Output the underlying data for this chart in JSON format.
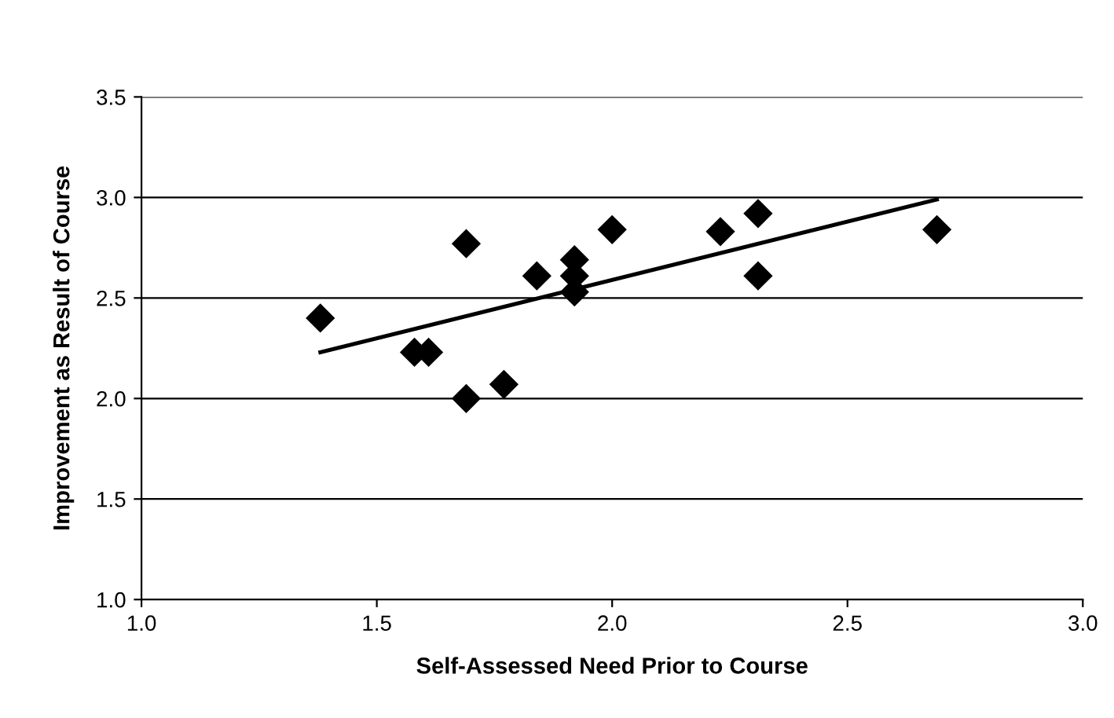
{
  "chart_data": {
    "type": "scatter",
    "xlabel": "Self-Assessed Need Prior to Course",
    "ylabel": "Improvement as Result of Course",
    "series": [
      {
        "color": "#000000",
        "marker": "diamond",
        "x": [
          1.38,
          1.58,
          1.61,
          1.69,
          1.69,
          1.77,
          1.84,
          1.92,
          1.92,
          1.92,
          2.0,
          2.23,
          2.31,
          2.31,
          2.69
        ],
        "values": [
          2.4,
          2.23,
          2.23,
          2.77,
          2.0,
          2.07,
          2.61,
          2.69,
          2.61,
          2.53,
          2.84,
          2.83,
          2.92,
          2.61,
          2.84
        ]
      },
      {
        "type": "line",
        "color": "#000000",
        "marker": "none",
        "line_style": "solid",
        "x": [
          1.38,
          2.69
        ],
        "values": [
          2.23,
          2.99
        ]
      }
    ],
    "xlim": [
      1.0,
      3.0
    ],
    "xticks": [
      {
        "value": 1.0,
        "label": "1.0"
      },
      {
        "value": 1.5,
        "label": "1.5"
      },
      {
        "value": 2.0,
        "label": "2.0"
      },
      {
        "value": 2.5,
        "label": "2.5"
      },
      {
        "value": 3.0,
        "label": "3.0"
      }
    ],
    "ylim": [
      1.0,
      3.5
    ],
    "yticks": [
      {
        "value": 1.0,
        "label": "1.0"
      },
      {
        "value": 1.5,
        "label": "1.5"
      },
      {
        "value": 2.0,
        "label": "2.0"
      },
      {
        "value": 2.5,
        "label": "2.5"
      },
      {
        "value": 3.0,
        "label": "3.0"
      },
      {
        "value": 3.5,
        "label": "3.5"
      }
    ],
    "grid": "y"
  }
}
